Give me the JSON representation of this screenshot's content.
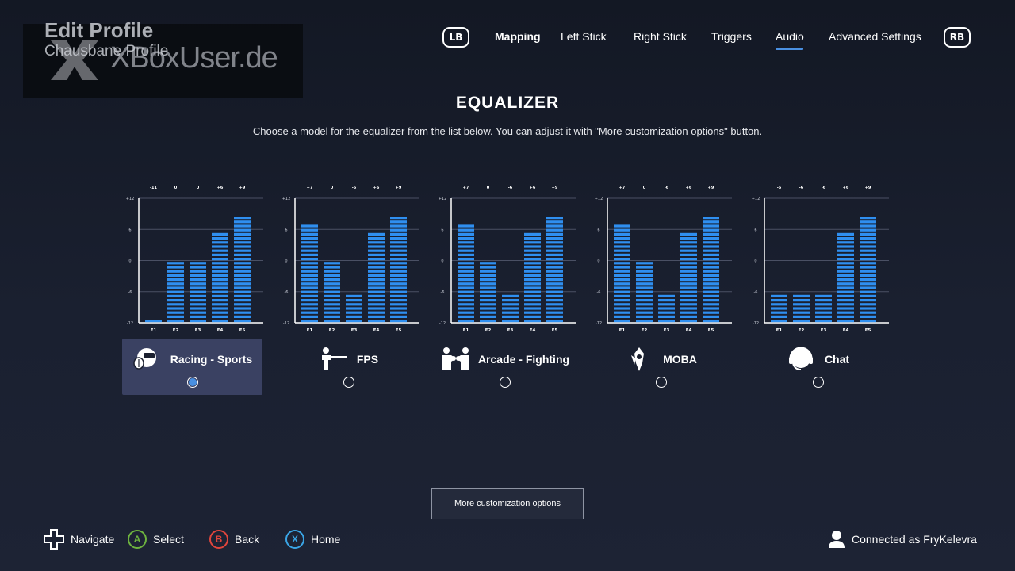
{
  "watermark": {
    "text": "XBoxUser.de"
  },
  "profile": {
    "title": "Edit Profile",
    "subtitle": "Chausbane Profile"
  },
  "nav": {
    "left_bumper": "LB",
    "right_bumper": "RB",
    "tabs": [
      {
        "label": "Mapping",
        "active": false
      },
      {
        "label": "Left Stick",
        "active": false
      },
      {
        "label": "Right Stick",
        "active": false
      },
      {
        "label": "Triggers",
        "active": false
      },
      {
        "label": "Audio",
        "active": true
      },
      {
        "label": "Advanced Settings",
        "active": false
      }
    ]
  },
  "equalizer": {
    "title": "EQUALIZER",
    "description": "Choose a model for the equalizer from the list below. You can adjust it with \"More customization options\" button."
  },
  "chart_data": [
    {
      "type": "bar",
      "title": "Racing - Sports",
      "categories": [
        "F1",
        "F2",
        "F3",
        "F4",
        "F5"
      ],
      "values": [
        -11,
        0,
        0,
        6,
        9
      ],
      "value_labels": [
        "-11",
        "0",
        "0",
        "+6",
        "+9"
      ],
      "ylim": [
        -12,
        12
      ],
      "yticks": [
        "+12",
        "6",
        "0",
        "-6",
        "-12"
      ]
    },
    {
      "type": "bar",
      "title": "FPS",
      "categories": [
        "F1",
        "F2",
        "F3",
        "F4",
        "F5"
      ],
      "values": [
        7,
        0,
        -6,
        6,
        9
      ],
      "value_labels": [
        "+7",
        "0",
        "-6",
        "+6",
        "+9"
      ],
      "ylim": [
        -12,
        12
      ],
      "yticks": [
        "+12",
        "6",
        "0",
        "-6",
        "-12"
      ]
    },
    {
      "type": "bar",
      "title": "Arcade - Fighting",
      "categories": [
        "F1",
        "F2",
        "F3",
        "F4",
        "F5"
      ],
      "values": [
        7,
        0,
        -6,
        6,
        9
      ],
      "value_labels": [
        "+7",
        "0",
        "-6",
        "+6",
        "+9"
      ],
      "ylim": [
        -12,
        12
      ],
      "yticks": [
        "+12",
        "6",
        "0",
        "-6",
        "-12"
      ]
    },
    {
      "type": "bar",
      "title": "MOBA",
      "categories": [
        "F1",
        "F2",
        "F3",
        "F4",
        "F5"
      ],
      "values": [
        7,
        0,
        -6,
        6,
        9
      ],
      "value_labels": [
        "+7",
        "0",
        "-6",
        "+6",
        "+9"
      ],
      "ylim": [
        -12,
        12
      ],
      "yticks": [
        "+12",
        "6",
        "0",
        "-6",
        "-12"
      ]
    },
    {
      "type": "bar",
      "title": "Chat",
      "categories": [
        "F1",
        "F2",
        "F3",
        "F4",
        "F5"
      ],
      "values": [
        -6,
        -6,
        -6,
        6,
        9
      ],
      "value_labels": [
        "-6",
        "-6",
        "-6",
        "+6",
        "+9"
      ],
      "ylim": [
        -12,
        12
      ],
      "yticks": [
        "+12",
        "6",
        "0",
        "-6",
        "-12"
      ]
    }
  ],
  "presets": [
    {
      "name": "Racing - Sports",
      "icon": "racing-helmet-icon",
      "selected": true
    },
    {
      "name": "FPS",
      "icon": "shooter-icon",
      "selected": false
    },
    {
      "name": "Arcade - Fighting",
      "icon": "fighters-icon",
      "selected": false
    },
    {
      "name": "MOBA",
      "icon": "moba-emblem-icon",
      "selected": false
    },
    {
      "name": "Chat",
      "icon": "headset-icon",
      "selected": false
    }
  ],
  "more_button": "More customization options",
  "footer": {
    "navigate": "Navigate",
    "select": {
      "key": "A",
      "label": "Select",
      "color": "#6db33f"
    },
    "back": {
      "key": "B",
      "label": "Back",
      "color": "#e0453c"
    },
    "home": {
      "key": "X",
      "label": "Home",
      "color": "#3aa5e6"
    },
    "connected": "Connected as FryKelevra"
  },
  "colors": {
    "bar": "#2f8ff0",
    "accent": "#4a90e2",
    "card": "#3a4162"
  }
}
